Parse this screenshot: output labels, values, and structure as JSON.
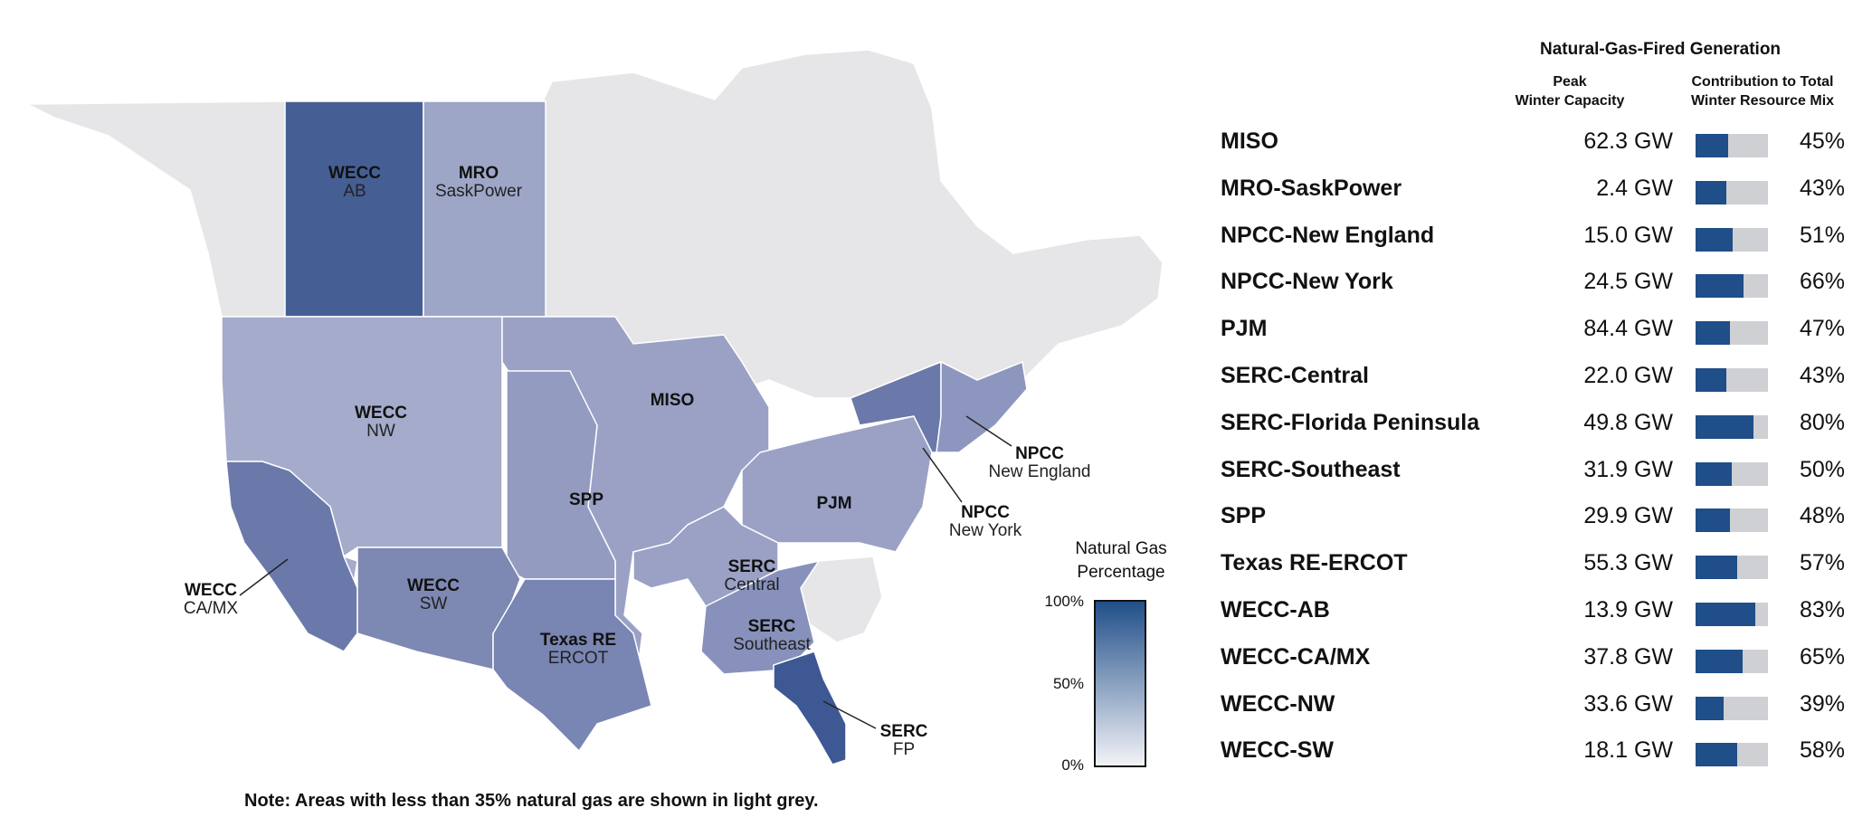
{
  "map": {
    "regions": [
      {
        "id": "wecc-ab",
        "line1": "WECC",
        "line2": "AB",
        "color": "#455f94"
      },
      {
        "id": "mro-sask",
        "line1": "MRO",
        "line2": "SaskPower",
        "color": "#9ea6c7"
      },
      {
        "id": "wecc-nw",
        "line1": "WECC",
        "line2": "NW",
        "color": "#a4abcb"
      },
      {
        "id": "miso",
        "line1": "MISO",
        "line2": "",
        "color": "#9aa1c5"
      },
      {
        "id": "spp",
        "line1": "SPP",
        "line2": "",
        "color": "#949bc1"
      },
      {
        "id": "pjm",
        "line1": "PJM",
        "line2": "",
        "color": "#9aa1c5"
      },
      {
        "id": "wecc-camx",
        "line1": "WECC",
        "line2": "CA/MX",
        "color": "#6a79aa"
      },
      {
        "id": "wecc-sw",
        "line1": "WECC",
        "line2": "SW",
        "color": "#7d88b3"
      },
      {
        "id": "texas",
        "line1": "Texas RE",
        "line2": "ERCOT",
        "color": "#7985b2"
      },
      {
        "id": "serc-central",
        "line1": "SERC",
        "line2": "Central",
        "color": "#9aa1c5"
      },
      {
        "id": "serc-se",
        "line1": "SERC",
        "line2": "Southeast",
        "color": "#8791bb"
      },
      {
        "id": "serc-fp",
        "line1": "SERC",
        "line2": "FP",
        "color": "#3e5894"
      },
      {
        "id": "npcc-ny",
        "line1": "NPCC",
        "line2": "New York",
        "color": "#6a79aa"
      },
      {
        "id": "npcc-ne",
        "line1": "NPCC",
        "line2": "New England",
        "color": "#8d96be"
      }
    ],
    "grey_color": "#e6e6e8"
  },
  "legend": {
    "title_line1": "Natural Gas",
    "title_line2": "Percentage",
    "tick_top": "100%",
    "tick_mid": "50%",
    "tick_bottom": "0%",
    "color_top": "#1f4e88",
    "color_bottom": "#f4f4f8"
  },
  "note": "Note: Areas with less than 35% natural gas are shown in light grey.",
  "table": {
    "title": "Natural-Gas-Fired Generation",
    "col1_line1": "Peak",
    "col1_line2": "Winter Capacity",
    "col2_line1": "Contribution to Total",
    "col2_line2": "Winter Resource Mix",
    "bar_color": "#1f4e88",
    "rows": [
      {
        "name": "MISO",
        "capacity": "62.3 GW",
        "pct_label": "45%",
        "pct": 45
      },
      {
        "name": "MRO-SaskPower",
        "capacity": "2.4 GW",
        "pct_label": "43%",
        "pct": 43
      },
      {
        "name": "NPCC-New England",
        "capacity": "15.0 GW",
        "pct_label": "51%",
        "pct": 51
      },
      {
        "name": "NPCC-New York",
        "capacity": "24.5 GW",
        "pct_label": "66%",
        "pct": 66
      },
      {
        "name": "PJM",
        "capacity": "84.4 GW",
        "pct_label": "47%",
        "pct": 47
      },
      {
        "name": "SERC-Central",
        "capacity": "22.0 GW",
        "pct_label": "43%",
        "pct": 43
      },
      {
        "name": "SERC-Florida Peninsula",
        "capacity": "49.8 GW",
        "pct_label": "80%",
        "pct": 80
      },
      {
        "name": "SERC-Southeast",
        "capacity": "31.9 GW",
        "pct_label": "50%",
        "pct": 50
      },
      {
        "name": "SPP",
        "capacity": "29.9 GW",
        "pct_label": "48%",
        "pct": 48
      },
      {
        "name": "Texas RE-ERCOT",
        "capacity": "55.3 GW",
        "pct_label": "57%",
        "pct": 57
      },
      {
        "name": "WECC-AB",
        "capacity": "13.9 GW",
        "pct_label": "83%",
        "pct": 83
      },
      {
        "name": "WECC-CA/MX",
        "capacity": "37.8 GW",
        "pct_label": "65%",
        "pct": 65
      },
      {
        "name": "WECC-NW",
        "capacity": "33.6 GW",
        "pct_label": "39%",
        "pct": 39
      },
      {
        "name": "WECC-SW",
        "capacity": "18.1 GW",
        "pct_label": "58%",
        "pct": 58
      }
    ]
  }
}
